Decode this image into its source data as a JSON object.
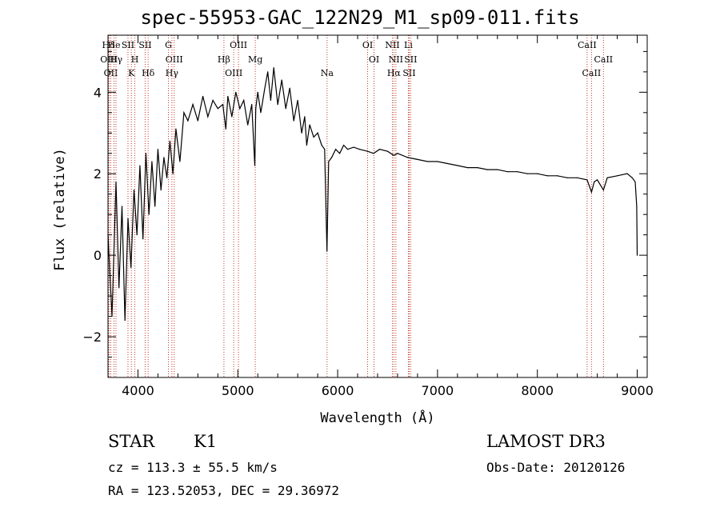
{
  "chart_data": {
    "type": "line",
    "title": "spec-55953-GAC_122N29_M1_sp09-011.fits",
    "xlabel": "Wavelength (Å)",
    "ylabel": "Flux (relative)",
    "xlim": [
      3700,
      9100
    ],
    "ylim": [
      -3.0,
      5.4
    ],
    "xticks": [
      4000,
      5000,
      6000,
      7000,
      8000,
      9000
    ],
    "yticks": [
      -2,
      0,
      2,
      4
    ],
    "series": [
      {
        "name": "spectrum",
        "x": [
          3700,
          3740,
          3780,
          3810,
          3840,
          3870,
          3900,
          3930,
          3960,
          3990,
          4020,
          4050,
          4080,
          4110,
          4140,
          4170,
          4200,
          4230,
          4260,
          4290,
          4320,
          4350,
          4380,
          4420,
          4460,
          4500,
          4550,
          4600,
          4650,
          4700,
          4750,
          4800,
          4850,
          4880,
          4900,
          4940,
          4980,
          5020,
          5060,
          5100,
          5140,
          5170,
          5180,
          5200,
          5230,
          5270,
          5300,
          5330,
          5360,
          5400,
          5440,
          5480,
          5520,
          5560,
          5600,
          5640,
          5670,
          5690,
          5720,
          5760,
          5800,
          5840,
          5870,
          5893,
          5910,
          5940,
          5980,
          6020,
          6060,
          6100,
          6160,
          6220,
          6300,
          6360,
          6420,
          6500,
          6562,
          6600,
          6700,
          6800,
          6900,
          7000,
          7100,
          7200,
          7300,
          7400,
          7500,
          7600,
          7700,
          7800,
          7900,
          8000,
          8100,
          8200,
          8300,
          8400,
          8498,
          8520,
          8542,
          8570,
          8600,
          8662,
          8700,
          8800,
          8900,
          8950,
          8980,
          8995,
          9000
        ],
        "y": [
          0.5,
          -1.5,
          1.8,
          -0.8,
          1.2,
          -1.6,
          0.9,
          -0.3,
          1.6,
          0.5,
          2.2,
          0.4,
          2.5,
          1.0,
          2.3,
          1.2,
          2.6,
          1.6,
          2.4,
          1.9,
          2.8,
          2.0,
          3.1,
          2.3,
          3.5,
          3.3,
          3.7,
          3.3,
          3.9,
          3.4,
          3.8,
          3.6,
          3.7,
          3.1,
          3.9,
          3.4,
          4.0,
          3.6,
          3.8,
          3.2,
          3.7,
          2.2,
          3.6,
          4.0,
          3.5,
          4.1,
          4.5,
          3.8,
          4.6,
          3.7,
          4.3,
          3.6,
          4.1,
          3.3,
          3.8,
          3.0,
          3.4,
          2.7,
          3.2,
          2.9,
          3.0,
          2.7,
          2.6,
          0.1,
          2.3,
          2.4,
          2.6,
          2.5,
          2.7,
          2.6,
          2.65,
          2.6,
          2.55,
          2.5,
          2.6,
          2.55,
          2.45,
          2.5,
          2.4,
          2.35,
          2.3,
          2.3,
          2.25,
          2.2,
          2.15,
          2.15,
          2.1,
          2.1,
          2.05,
          2.05,
          2.0,
          2.0,
          1.95,
          1.95,
          1.9,
          1.9,
          1.85,
          1.7,
          1.55,
          1.8,
          1.85,
          1.6,
          1.9,
          1.95,
          2.0,
          1.9,
          1.8,
          1.2,
          0.0
        ]
      }
    ],
    "spectral_lines": [
      {
        "label": "Hδ",
        "x": 3705
      },
      {
        "label": "OIII",
        "x": 3710
      },
      {
        "label": "OII",
        "x": 3728
      },
      {
        "label": "He",
        "x": 3760
      },
      {
        "label": "Hγ",
        "x": 3780
      },
      {
        "label": "K",
        "x": 3934
      },
      {
        "label": "SII",
        "x": 3900
      },
      {
        "label": "H",
        "x": 3969
      },
      {
        "label": "Hδ",
        "x": 4102
      },
      {
        "label": "SII",
        "x": 4072
      },
      {
        "label": "OIII",
        "x": 4363
      },
      {
        "label": "Hγ",
        "x": 4340
      },
      {
        "label": "G",
        "x": 4305
      },
      {
        "label": "Hβ",
        "x": 4861
      },
      {
        "label": "OIII",
        "x": 4959
      },
      {
        "label": "OIII",
        "x": 5007
      },
      {
        "label": "Mg",
        "x": 5175
      },
      {
        "label": "Na",
        "x": 5894
      },
      {
        "label": "OI",
        "x": 6300
      },
      {
        "label": "OI",
        "x": 6364
      },
      {
        "label": "Hα",
        "x": 6563
      },
      {
        "label": "NII",
        "x": 6548
      },
      {
        "label": "NII",
        "x": 6583
      },
      {
        "label": "SII",
        "x": 6716
      },
      {
        "label": "Li",
        "x": 6708
      },
      {
        "label": "SII",
        "x": 6731
      },
      {
        "label": "CaII",
        "x": 8542
      },
      {
        "label": "CaII",
        "x": 8498
      },
      {
        "label": "CaII",
        "x": 8662
      }
    ]
  },
  "info": {
    "object_class": "STAR",
    "subclass": "K1",
    "survey": "LAMOST DR3",
    "redshift": "cz = 113.3 ± 55.5 km/s",
    "obs_date": "Obs-Date: 20120126",
    "coords": "RA = 123.52053, DEC =  29.36972"
  }
}
